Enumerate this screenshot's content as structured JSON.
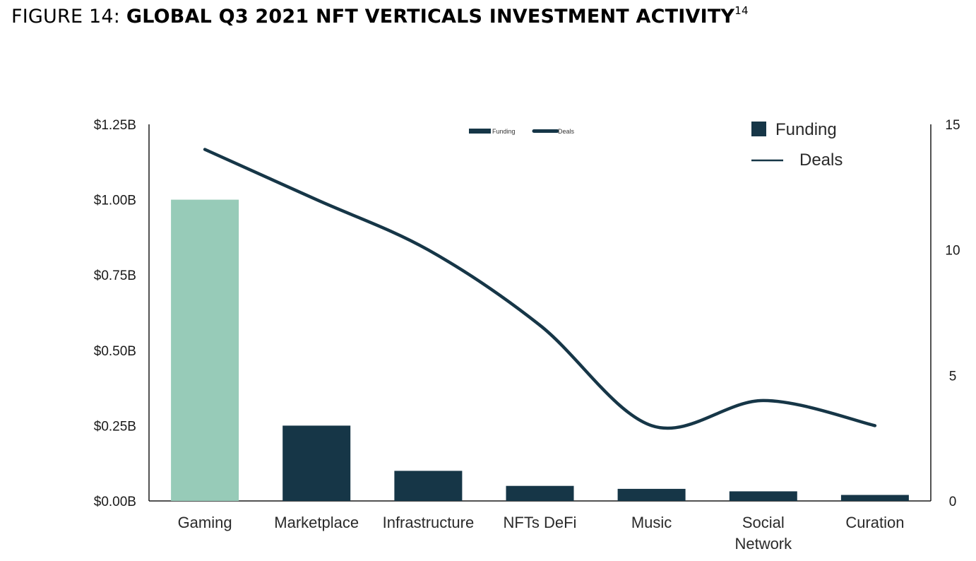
{
  "figure": {
    "prefix": "FIGURE 14: ",
    "title": "GLOBAL Q3 2021 NFT VERTICALS INVESTMENT ACTIVITY",
    "footnote": "14"
  },
  "chart_data": {
    "type": "bar",
    "title": "GLOBAL Q3 2021 NFT VERTICALS INVESTMENT ACTIVITY",
    "categories": [
      "Gaming",
      "Marketplace",
      "Infrastructure",
      "NFTs DeFi",
      "Music",
      "Social Network",
      "Curation"
    ],
    "category_lines": [
      [
        "Gaming"
      ],
      [
        "Marketplace"
      ],
      [
        "Infrastructure"
      ],
      [
        "NFTs DeFi"
      ],
      [
        "Music"
      ],
      [
        "Social",
        "Network"
      ],
      [
        "Curation"
      ]
    ],
    "series": [
      {
        "name": "Funding",
        "type": "bar",
        "axis": "left",
        "unit": "$B",
        "values": [
          1.0,
          0.25,
          0.1,
          0.05,
          0.04,
          0.032,
          0.02
        ],
        "colors": [
          "#97cbb8",
          "#163647",
          "#163647",
          "#163647",
          "#163647",
          "#163647",
          "#163647"
        ]
      },
      {
        "name": "Deals",
        "type": "line",
        "axis": "right",
        "values": [
          14,
          12,
          10,
          7,
          3,
          4,
          3
        ],
        "color": "#163647"
      }
    ],
    "y_left": {
      "ylim": [
        0,
        1.25
      ],
      "ticks": [
        0,
        0.25,
        0.5,
        0.75,
        1.0,
        1.25
      ],
      "tick_labels": [
        "$0.00B",
        "$0.25B",
        "$0.50B",
        "$0.75B",
        "$1.00B",
        "$1.25B"
      ]
    },
    "y_right": {
      "ylim": [
        0,
        15
      ],
      "ticks": [
        0,
        5,
        10,
        15
      ],
      "tick_labels": [
        "0",
        "5",
        "10",
        "15"
      ]
    },
    "legend": {
      "position": "top-right",
      "entries": [
        "Funding",
        "Deals"
      ]
    },
    "legend_small": {
      "position": "top-center",
      "entries": [
        "Funding",
        "Deals"
      ]
    },
    "grid": false,
    "xlabel": "",
    "ylabel": ""
  }
}
